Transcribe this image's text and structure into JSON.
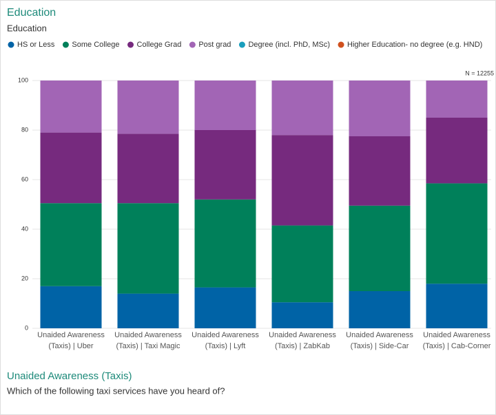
{
  "header": {
    "title": "Education",
    "subtitle": "Education"
  },
  "chart_data": {
    "type": "stacked_bar",
    "categories": [
      "Unaided Awareness (Taxis) | Uber",
      "Unaided Awareness (Taxis) | Taxi Magic",
      "Unaided Awareness (Taxis) | Lyft",
      "Unaided Awareness (Taxis) | ZabKab",
      "Unaided Awareness (Taxis) | Side-Car",
      "Unaided Awareness (Taxis) | Cab-Corner"
    ],
    "series": [
      {
        "name": "HS or Less",
        "color": "#0063a6",
        "values": [
          17,
          14,
          16.5,
          10.5,
          15,
          18
        ]
      },
      {
        "name": "Some College",
        "color": "#00805a",
        "values": [
          33.5,
          36.5,
          35.5,
          31,
          34.5,
          40.5
        ]
      },
      {
        "name": "College Grad",
        "color": "#762a7e",
        "values": [
          28.5,
          28,
          28,
          36.5,
          28,
          26.5
        ]
      },
      {
        "name": "Post grad",
        "color": "#a265b5",
        "values": [
          21,
          21.5,
          20,
          22,
          22.5,
          15
        ]
      },
      {
        "name": "Degree (incl. PhD, MSc)",
        "color": "#1a9ebd",
        "values": [
          0,
          0,
          0,
          0,
          0,
          0
        ]
      },
      {
        "name": "Higher Education- no degree (e.g. HND)",
        "color": "#d0511e",
        "values": [
          0,
          0,
          0,
          0,
          0,
          0
        ]
      }
    ],
    "ylim": [
      0,
      100
    ],
    "yticks": [
      0,
      20,
      40,
      60,
      80,
      100
    ],
    "grid": true,
    "annotation": "N = 12255"
  },
  "footer": {
    "title": "Unaided Awareness (Taxis)",
    "question": "Which of the following taxi services have you heard of?"
  }
}
